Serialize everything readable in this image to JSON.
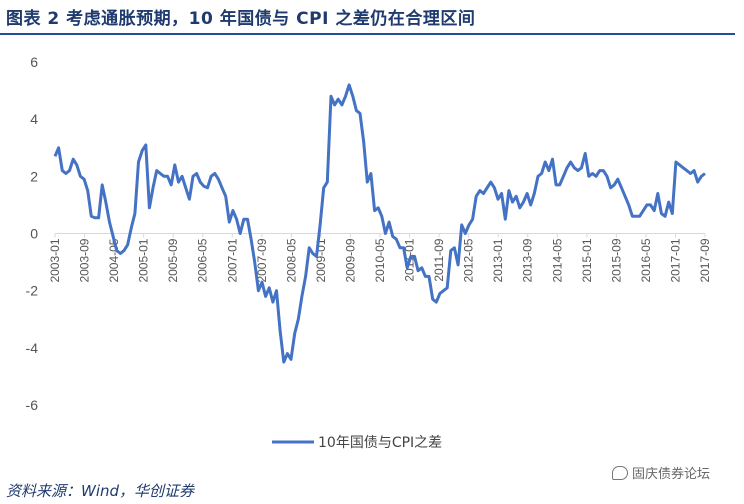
{
  "figure": {
    "title": "图表 2    考虑通胀预期，10 年国债与 CPI 之差仍在合理区间",
    "source": "资料来源：Wind，华创证券",
    "watermark": "固庆债券论坛",
    "watermark_icon": "chat-bubble-icon"
  },
  "colors": {
    "line": "#4472c4",
    "title": "#1f3a6e",
    "rule": "#1f4e9a",
    "axis": "#d9d9d9"
  },
  "chart_data": {
    "type": "line",
    "title": "",
    "xlabel": "",
    "ylabel": "",
    "ylim": [
      -6,
      6
    ],
    "yticks": [
      6,
      4,
      2,
      0,
      -2,
      -4,
      -6
    ],
    "grid": false,
    "legend_position": "bottom",
    "x_start": "2003-01",
    "x_end": "2017-09",
    "x_ticks": [
      "2003-01",
      "2003-09",
      "2004-05",
      "2005-01",
      "2005-09",
      "2006-05",
      "2007-01",
      "2007-09",
      "2008-05",
      "2009-01",
      "2009-09",
      "2010-05",
      "2011-01",
      "2011-09",
      "2012-05",
      "2013-01",
      "2013-09",
      "2014-05",
      "2015-01",
      "2015-09",
      "2016-05",
      "2017-01",
      "2017-09"
    ],
    "series": [
      {
        "name": "10年国债与CPI之差",
        "values": [
          2.7,
          3.0,
          2.2,
          2.1,
          2.2,
          2.6,
          2.4,
          2.0,
          1.9,
          1.5,
          0.6,
          0.55,
          0.55,
          1.7,
          1.1,
          0.4,
          -0.1,
          -0.6,
          -0.7,
          -0.6,
          -0.4,
          0.2,
          0.7,
          2.5,
          2.9,
          3.1,
          0.9,
          1.6,
          2.2,
          2.1,
          2.0,
          2.0,
          1.7,
          2.4,
          1.8,
          2.0,
          1.6,
          1.2,
          2.0,
          2.1,
          1.8,
          1.65,
          1.6,
          2.0,
          2.1,
          1.9,
          1.6,
          1.3,
          0.4,
          0.8,
          0.5,
          0.0,
          0.5,
          0.5,
          -0.2,
          -1.0,
          -2.0,
          -1.7,
          -2.2,
          -1.9,
          -2.4,
          -2.0,
          -3.4,
          -4.5,
          -4.2,
          -4.4,
          -3.5,
          -3.0,
          -2.2,
          -1.5,
          -0.5,
          -0.7,
          -0.8,
          0.3,
          1.6,
          1.8,
          4.8,
          4.5,
          4.7,
          4.5,
          4.8,
          5.2,
          4.8,
          4.3,
          4.2,
          3.2,
          1.8,
          2.1,
          0.8,
          0.9,
          0.6,
          0.0,
          0.4,
          -0.1,
          -0.2,
          -0.5,
          -0.5,
          -1.2,
          -0.8,
          -0.8,
          -1.3,
          -1.2,
          -1.5,
          -1.5,
          -2.3,
          -2.4,
          -2.1,
          -2.0,
          -1.9,
          -0.6,
          -0.5,
          -1.1,
          0.3,
          0.0,
          0.3,
          0.5,
          1.3,
          1.5,
          1.4,
          1.6,
          1.8,
          1.6,
          1.2,
          1.4,
          0.5,
          1.5,
          1.1,
          1.3,
          0.9,
          1.1,
          1.4,
          1.0,
          1.4,
          2.0,
          2.1,
          2.5,
          2.2,
          2.6,
          1.7,
          1.7,
          2.0,
          2.3,
          2.5,
          2.3,
          2.2,
          2.3,
          2.8,
          2.0,
          2.1,
          2.0,
          2.2,
          2.2,
          2.0,
          1.6,
          1.7,
          1.9,
          1.6,
          1.3,
          1.0,
          0.6,
          0.6,
          0.6,
          0.8,
          1.0,
          1.0,
          0.8,
          1.4,
          0.7,
          0.6,
          1.1,
          0.7,
          2.5,
          2.4,
          2.3,
          2.2,
          2.1,
          2.2,
          1.8,
          2.0,
          2.1
        ]
      }
    ]
  }
}
